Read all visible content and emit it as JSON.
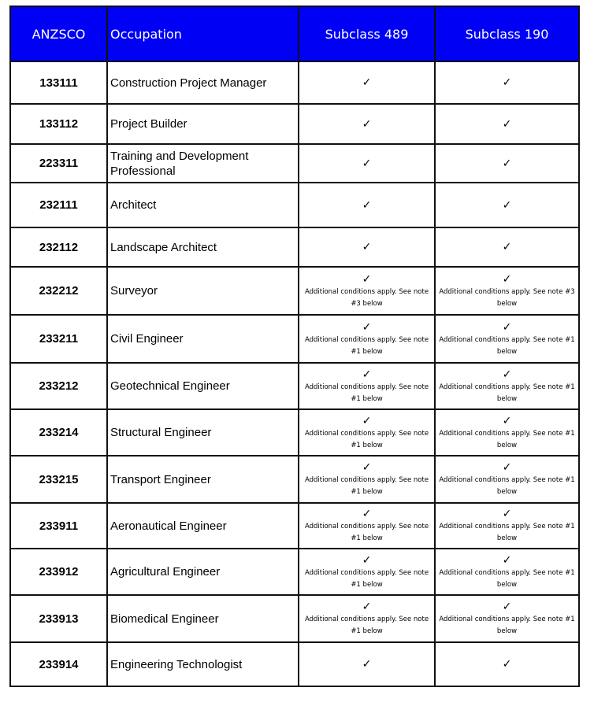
{
  "header": {
    "anzsco": "ANZSCO",
    "occupation": "Occupation",
    "s489": "Subclass 489",
    "s190": "Subclass 190"
  },
  "rows": [
    {
      "code": "133111",
      "occupation": "Construction Project Manager",
      "s489": {
        "check": "✓",
        "note": ""
      },
      "s190": {
        "check": "✓",
        "note": ""
      }
    },
    {
      "code": "133112",
      "occupation": "Project Builder",
      "s489": {
        "check": "✓",
        "note": ""
      },
      "s190": {
        "check": "✓",
        "note": ""
      }
    },
    {
      "code": "223311",
      "occupation": "Training and Development Professional",
      "s489": {
        "check": "✓",
        "note": ""
      },
      "s190": {
        "check": "✓",
        "note": ""
      }
    },
    {
      "code": "232111",
      "occupation": "Architect",
      "s489": {
        "check": "✓",
        "note": ""
      },
      "s190": {
        "check": "✓",
        "note": ""
      }
    },
    {
      "code": "232112",
      "occupation": "Landscape Architect",
      "s489": {
        "check": "✓",
        "note": ""
      },
      "s190": {
        "check": "✓",
        "note": ""
      }
    },
    {
      "code": "232212",
      "occupation": "Surveyor",
      "s489": {
        "check": "✓",
        "note": "Additional conditions apply. See note #3 below"
      },
      "s190": {
        "check": "✓",
        "note": "Additional conditions apply. See note #3 below"
      }
    },
    {
      "code": "233211",
      "occupation": "Civil Engineer",
      "s489": {
        "check": "✓",
        "note": "Additional conditions apply. See note #1 below"
      },
      "s190": {
        "check": "✓",
        "note": "Additional conditions apply. See note #1 below"
      }
    },
    {
      "code": "233212",
      "occupation": "Geotechnical Engineer",
      "s489": {
        "check": "✓",
        "note": "Additional conditions apply. See note #1 below"
      },
      "s190": {
        "check": "✓",
        "note": "Additional conditions apply. See note #1 below"
      }
    },
    {
      "code": "233214",
      "occupation": "Structural Engineer",
      "s489": {
        "check": "✓",
        "note": "Additional conditions apply. See note #1 below"
      },
      "s190": {
        "check": "✓",
        "note": "Additional conditions apply. See note #1 below"
      }
    },
    {
      "code": "233215",
      "occupation": "Transport Engineer",
      "s489": {
        "check": "✓",
        "note": "Additional conditions apply. See note #1 below"
      },
      "s190": {
        "check": "✓",
        "note": "Additional conditions apply. See note #1 below"
      }
    },
    {
      "code": "233911",
      "occupation": "Aeronautical Engineer",
      "s489": {
        "check": "✓",
        "note": "Additional conditions apply. See note #1 below"
      },
      "s190": {
        "check": "✓",
        "note": "Additional conditions apply. See note #1 below"
      }
    },
    {
      "code": "233912",
      "occupation": "Agricultural Engineer",
      "s489": {
        "check": "✓",
        "note": "Additional conditions apply. See note #1 below"
      },
      "s190": {
        "check": "✓",
        "note": "Additional conditions apply. See note #1 below"
      }
    },
    {
      "code": "233913",
      "occupation": "Biomedical Engineer",
      "s489": {
        "check": "✓",
        "note": "Additional conditions apply. See note #1 below"
      },
      "s190": {
        "check": "✓",
        "note": "Additional conditions apply. See note #1 below"
      }
    },
    {
      "code": "233914",
      "occupation": "Engineering Technologist",
      "s489": {
        "check": "✓",
        "note": ""
      },
      "s190": {
        "check": "✓",
        "note": ""
      }
    }
  ],
  "colors": {
    "header_bg": "#0000f5",
    "header_text": "#ffffff",
    "border": "#111111"
  }
}
